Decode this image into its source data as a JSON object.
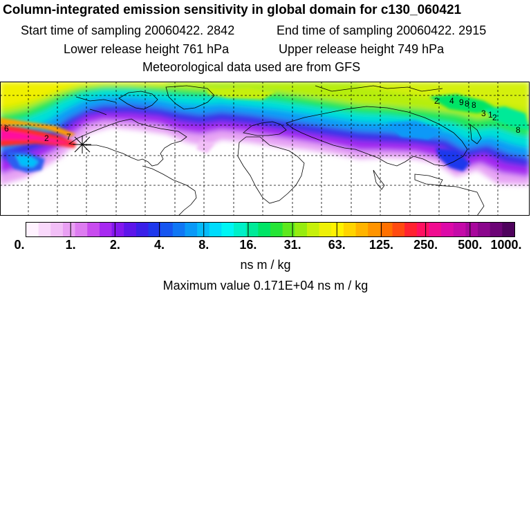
{
  "header": {
    "title": "Column-integrated emission sensitivity in global domain for c130_060421",
    "start_label": "Start time of sampling 20060422.  2842",
    "end_label": "End time of sampling 20060422.  2915",
    "lower_label": "Lower release height  761 hPa",
    "upper_label": "Upper release height  749 hPa",
    "met_label": "Meteorological data used are from GFS"
  },
  "colorbar": {
    "ticks": [
      "0.",
      "1.",
      "2.",
      "4.",
      "8.",
      "16.",
      "31.",
      "63.",
      "125.",
      "250.",
      "500.",
      "1000."
    ],
    "colors": [
      "#fff2ff",
      "#f9d9fb",
      "#f2bff7",
      "#e9a0f3",
      "#dd7cf0",
      "#c84cee",
      "#a72af0",
      "#8318ee",
      "#5d16ea",
      "#3a20e8",
      "#1e38ec",
      "#1656f0",
      "#1077f4",
      "#0a99f7",
      "#06bbfa",
      "#00dcfc",
      "#00f6f4",
      "#00f0c8",
      "#00ea98",
      "#00e466",
      "#26e436",
      "#5ee81e",
      "#96ec10",
      "#c6f00a",
      "#eef006",
      "#fff200",
      "#ffd400",
      "#ffb400",
      "#ff9400",
      "#ff7000",
      "#ff4a10",
      "#ff2230",
      "#ff1060",
      "#f00c90",
      "#dc0aa8",
      "#c40aa8",
      "#a8089c",
      "#8a068c",
      "#6c0476",
      "#4e025c"
    ],
    "unit": "ns m / kg",
    "max_label": "Maximum value  0.171E+04 ns m / kg"
  },
  "map": {
    "contour_labels": [
      "6",
      "2",
      "7",
      "2",
      "4",
      "9",
      "8",
      "8",
      "3",
      "1",
      "2",
      "8"
    ]
  }
}
